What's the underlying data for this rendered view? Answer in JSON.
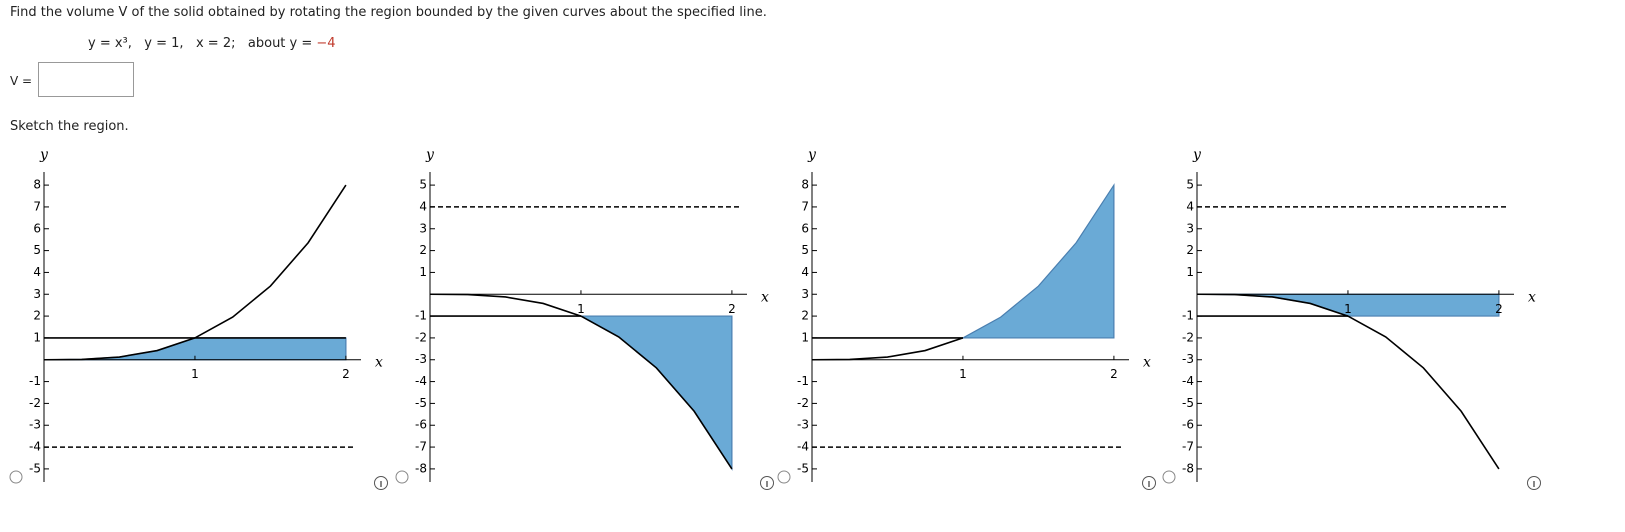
{
  "question": "Find the volume V of the solid obtained by rotating the region bounded by the given curves about the specified line.",
  "curves": [
    "y = x³,",
    "y = 1,",
    "x = 2;"
  ],
  "about": "about y =",
  "about_value": "−4",
  "answer_label": "V =",
  "sketch_label": "Sketch the region.",
  "chart_data": [
    {
      "type": "region",
      "x_label": "x",
      "y_label": "y",
      "xlim": [
        0,
        2.1
      ],
      "ylim": [
        -5.6,
        8.6
      ],
      "xticks": [
        1,
        2
      ],
      "yticks": [
        -5,
        -4,
        -3,
        -2,
        -1,
        1,
        2,
        3,
        4,
        5,
        6,
        7,
        8
      ],
      "region": {
        "color": "#6aaad6",
        "x": [
          0,
          0.25,
          0.5,
          0.75,
          1,
          2,
          2
        ],
        "values": [
          0,
          0.015625,
          0.125,
          0.421875,
          1,
          1,
          0
        ]
      },
      "series": [
        {
          "color": "#000000",
          "x": [
            0,
            0.25,
            0.5,
            0.75,
            1,
            1.25,
            1.5,
            1.75,
            2
          ],
          "values": [
            0,
            0.015625,
            0.125,
            0.421875,
            1,
            1.953125,
            3.375,
            5.359375,
            8
          ]
        },
        {
          "color": "#000000",
          "x": [
            0,
            2
          ],
          "values": [
            1,
            1
          ]
        },
        {
          "color": "#000000",
          "dash": true,
          "x": [
            0,
            2.05
          ],
          "values": [
            -4,
            -4
          ]
        }
      ]
    },
    {
      "type": "region",
      "x_label": "x",
      "y_label": "y",
      "xlim": [
        0,
        2.1
      ],
      "ylim": [
        -8.6,
        5.6
      ],
      "xticks": [
        1,
        2
      ],
      "yticks": [
        -8,
        -7,
        -6,
        -5,
        -4,
        -3,
        -2,
        -1,
        1,
        2,
        3,
        4,
        5
      ],
      "region": {
        "color": "#6aaad6",
        "x": [
          1,
          2,
          2,
          1.75,
          1.5,
          1.25
        ],
        "values": [
          -1,
          -1,
          -8,
          -5.359375,
          -3.375,
          -1.953125
        ]
      },
      "series": [
        {
          "color": "#000000",
          "x": [
            0,
            0.25,
            0.5,
            0.75,
            1,
            1.25,
            1.5,
            1.75,
            2
          ],
          "values": [
            0,
            -0.015625,
            -0.125,
            -0.421875,
            -1,
            -1.953125,
            -3.375,
            -5.359375,
            -8
          ]
        },
        {
          "color": "#000000",
          "x": [
            0,
            1
          ],
          "values": [
            -1,
            -1
          ]
        },
        {
          "color": "#000000",
          "dash": true,
          "x": [
            0,
            2.05
          ],
          "values": [
            4,
            4
          ]
        }
      ]
    },
    {
      "type": "region",
      "x_label": "x",
      "y_label": "y",
      "xlim": [
        0,
        2.1
      ],
      "ylim": [
        -5.6,
        8.6
      ],
      "xticks": [
        1,
        2
      ],
      "yticks": [
        -5,
        -4,
        -3,
        -2,
        -1,
        1,
        2,
        3,
        4,
        5,
        6,
        7,
        8
      ],
      "region": {
        "color": "#6aaad6",
        "x": [
          1,
          2,
          2,
          1.75,
          1.5,
          1.25
        ],
        "values": [
          1,
          1,
          8,
          5.359375,
          3.375,
          1.953125
        ]
      },
      "series": [
        {
          "color": "#000000",
          "x": [
            0,
            0.25,
            0.5,
            0.75,
            1
          ],
          "values": [
            0,
            0.015625,
            0.125,
            0.421875,
            1
          ]
        },
        {
          "color": "#000000",
          "x": [
            0,
            1
          ],
          "values": [
            1,
            1
          ]
        },
        {
          "color": "#000000",
          "dash": true,
          "x": [
            0,
            2.05
          ],
          "values": [
            -4,
            -4
          ]
        }
      ]
    },
    {
      "type": "region",
      "x_label": "x",
      "y_label": "y",
      "xlim": [
        0,
        2.1
      ],
      "ylim": [
        -8.6,
        5.6
      ],
      "xticks": [
        1,
        2
      ],
      "yticks": [
        -8,
        -7,
        -6,
        -5,
        -4,
        -3,
        -2,
        -1,
        1,
        2,
        3,
        4,
        5
      ],
      "region": {
        "color": "#6aaad6",
        "x": [
          0,
          0.25,
          0.5,
          0.75,
          1,
          2,
          2
        ],
        "values": [
          0,
          -0.015625,
          -0.125,
          -0.421875,
          -1,
          -1,
          0
        ]
      },
      "series": [
        {
          "color": "#000000",
          "x": [
            0,
            0.25,
            0.5,
            0.75,
            1,
            1.25,
            1.5,
            1.75,
            2
          ],
          "values": [
            0,
            -0.015625,
            -0.125,
            -0.421875,
            -1,
            -1.953125,
            -3.375,
            -5.359375,
            -8
          ]
        },
        {
          "color": "#000000",
          "x": [
            0,
            1
          ],
          "values": [
            -1,
            -1
          ]
        },
        {
          "color": "#000000",
          "dash": true,
          "x": [
            0,
            2.05
          ],
          "values": [
            4,
            4
          ]
        }
      ]
    }
  ]
}
